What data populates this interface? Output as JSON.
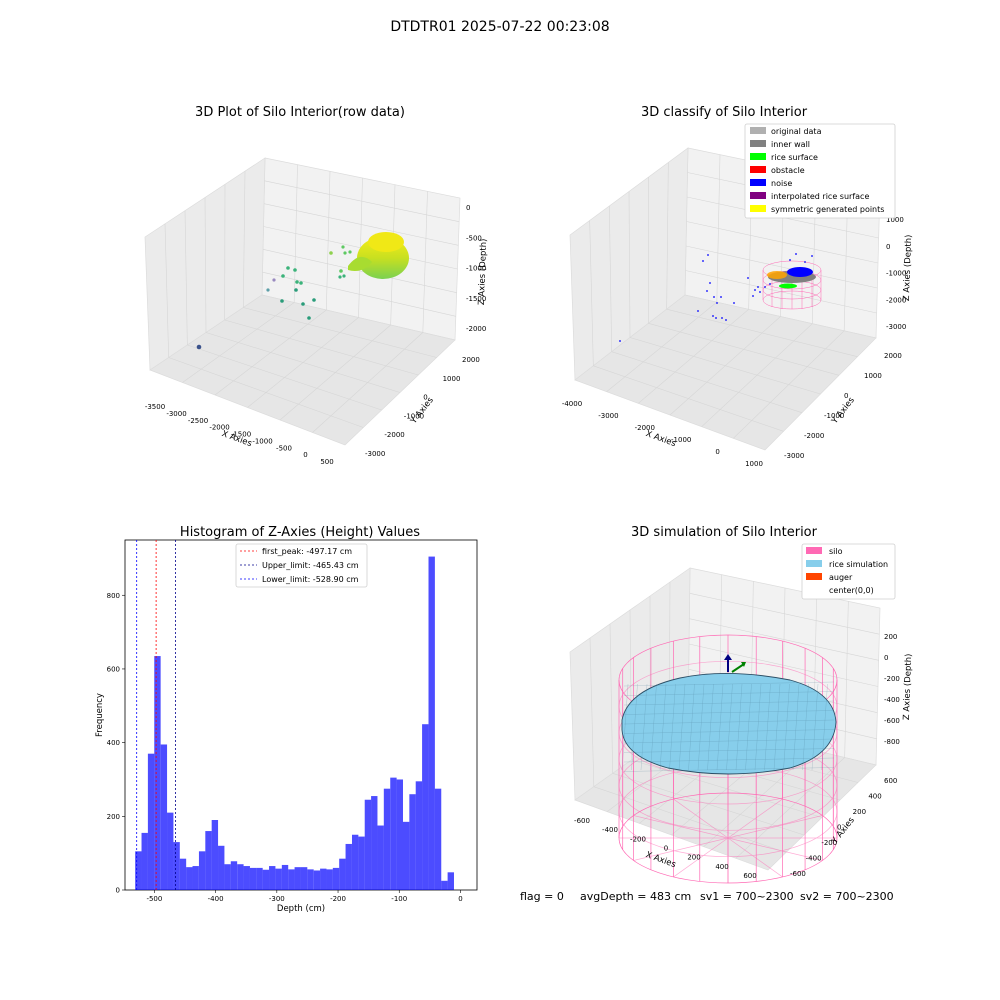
{
  "figure": {
    "suptitle": "DTDTR01 2025-07-22 00:23:08",
    "footer": {
      "flag": "flag = 0",
      "avg": "avgDepth = 483 cm",
      "sv1": "sv1 = 700~2300",
      "sv2": "sv2 = 700~2300"
    }
  },
  "chart_data": [
    {
      "type": "scatter",
      "projection": "3d",
      "title": "3D Plot of Silo Interior(row data)",
      "xlabel": "X Axies",
      "ylabel": "Y Axies",
      "zlabel": "Z Axies (Depth)",
      "xticks": [
        "-3500",
        "-3000",
        "-2500",
        "-2000",
        "-1500",
        "-1000",
        "-500",
        "0",
        "500"
      ],
      "yticks": [
        "-3000",
        "-2000",
        "-1000",
        "0",
        "1000",
        "2000"
      ],
      "zticks": [
        "0",
        "-500",
        "-1000",
        "-1500",
        "-2000"
      ],
      "colormap": "viridis",
      "grid": true
    },
    {
      "type": "scatter",
      "projection": "3d",
      "title": "3D classify of Silo Interior",
      "xlabel": "X Axies",
      "ylabel": "Y Axies",
      "zlabel": "Z Axies (Depth)",
      "xticks": [
        "-4000",
        "-3000",
        "-2000",
        "-1000",
        "0",
        "1000"
      ],
      "yticks": [
        "-3000",
        "-2000",
        "-1000",
        "0",
        "1000",
        "2000"
      ],
      "zticks": [
        "1000",
        "0",
        "-1000",
        "-2000",
        "-3000"
      ],
      "legend": [
        {
          "label": "original data",
          "color": "#b0b0b0"
        },
        {
          "label": "inner wall",
          "color": "#808080"
        },
        {
          "label": "rice surface",
          "color": "#00ff00"
        },
        {
          "label": "obstacle",
          "color": "#ff0000"
        },
        {
          "label": "noise",
          "color": "#0000ff"
        },
        {
          "label": "interpolated rice surface",
          "color": "#800080"
        },
        {
          "label": "symmetric generated points",
          "color": "#ffff00"
        }
      ],
      "legend_loc": "upper right",
      "grid": true
    },
    {
      "type": "bar",
      "title": "Histogram of Z-Axies (Height) Values",
      "xlabel": "Depth (cm)",
      "ylabel": "Frequency",
      "xlim": [
        -548,
        27
      ],
      "ylim": [
        0,
        950
      ],
      "xticks": [
        -500,
        -400,
        -300,
        -200,
        -100,
        0
      ],
      "yticks": [
        0,
        200,
        400,
        600,
        800
      ],
      "bin_width": 10.42,
      "x": [
        -526.2,
        -515.8,
        -505.4,
        -495.0,
        -484.5,
        -474.1,
        -463.7,
        -453.3,
        -442.9,
        -432.5,
        -422.0,
        -411.6,
        -401.2,
        -390.8,
        -380.4,
        -370.0,
        -359.5,
        -349.1,
        -338.7,
        -328.3,
        -317.9,
        -307.5,
        -297.0,
        -286.6,
        -276.2,
        -265.8,
        -255.4,
        -245.0,
        -234.5,
        -224.1,
        -213.7,
        -203.3,
        -192.9,
        -182.5,
        -172.0,
        -161.6,
        -151.2,
        -140.8,
        -130.4,
        -120.0,
        -109.5,
        -99.1,
        -88.7,
        -78.3,
        -67.9,
        -57.5,
        -47.0,
        -36.6,
        -26.2,
        -15.8,
        -5.4
      ],
      "values": [
        105,
        155,
        370,
        635,
        395,
        210,
        130,
        85,
        62,
        65,
        105,
        160,
        190,
        120,
        70,
        78,
        70,
        65,
        60,
        60,
        55,
        65,
        58,
        68,
        56,
        62,
        62,
        56,
        53,
        58,
        56,
        60,
        85,
        125,
        150,
        145,
        245,
        255,
        175,
        275,
        305,
        300,
        185,
        260,
        295,
        450,
        905,
        275,
        25,
        48,
        0
      ],
      "bar_color": "#0000ff",
      "bar_alpha": 0.7,
      "vlines": [
        {
          "label": "first_peak: -497.17 cm",
          "x": -497.17,
          "color": "#ff0000"
        },
        {
          "label": "Upper_limit: -465.43 cm",
          "x": -465.43,
          "color": "#00008b"
        },
        {
          "label": "Lower_limit: -528.90 cm",
          "x": -528.9,
          "color": "#0000ff"
        }
      ],
      "legend_loc": "upper center"
    },
    {
      "type": "surface",
      "projection": "3d",
      "title": "3D simulation of Silo Interior",
      "xlabel": "X Axies",
      "ylabel": "Y Axies",
      "zlabel": "Z Axies (Depth)",
      "xticks": [
        "-600",
        "-400",
        "-200",
        "0",
        "200",
        "400",
        "600"
      ],
      "yticks": [
        "-600",
        "-400",
        "-200",
        "0",
        "200",
        "400",
        "600"
      ],
      "zticks": [
        "200",
        "0",
        "-200",
        "-400",
        "-600",
        "-800"
      ],
      "legend": [
        {
          "label": "silo",
          "color": "#ff69b4"
        },
        {
          "label": "rice simulation",
          "color": "#87ceeb"
        },
        {
          "label": "auger",
          "color": "#ff4500"
        },
        {
          "label": "center(0,0)",
          "color": "#ffffff"
        }
      ],
      "legend_loc": "upper right"
    }
  ]
}
